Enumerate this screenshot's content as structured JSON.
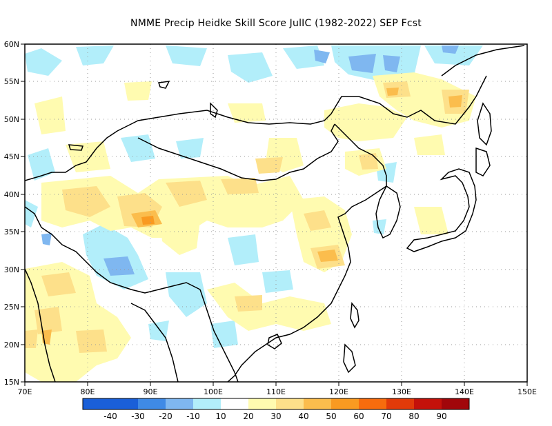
{
  "title": "NMME Precip Heidke Skill Score JulIC (1982-2022) SEP Fcst",
  "map": {
    "lon_range": [
      70,
      150
    ],
    "lat_range": [
      15,
      60
    ],
    "lon_ticks": [
      "70E",
      "80E",
      "90E",
      "100E",
      "110E",
      "120E",
      "130E",
      "140E",
      "150E"
    ],
    "lat_ticks": [
      "15N",
      "20N",
      "25N",
      "30N",
      "35N",
      "40N",
      "45N",
      "50N",
      "55N",
      "60N"
    ]
  },
  "legend": {
    "colors": [
      "#1a5fd8",
      "#3f8ae6",
      "#7fb7f0",
      "#b2eefa",
      "#ffffff",
      "#fffbb0",
      "#fde08a",
      "#fbbd4d",
      "#f99a21",
      "#f76c0d",
      "#e13a09",
      "#c4110a",
      "#a1060a"
    ],
    "labels": [
      "-40",
      "-30",
      "-20",
      "-10",
      "10",
      "20",
      "30",
      "40",
      "50",
      "60",
      "70",
      "80",
      "90"
    ]
  },
  "colors": {
    "coastline": "#000000",
    "grid": "#9a9a9a"
  }
}
